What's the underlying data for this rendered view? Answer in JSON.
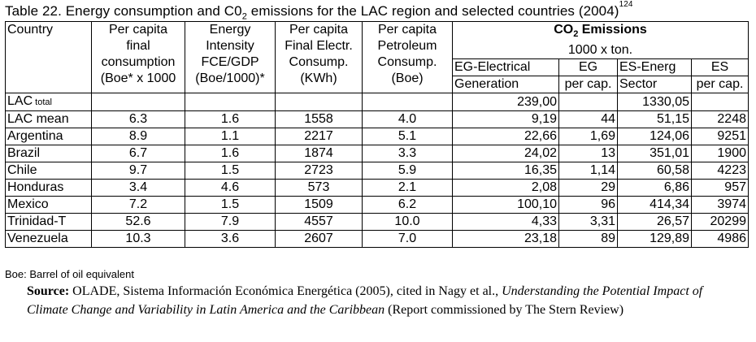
{
  "title": {
    "prefix": "Table 22. Energy consumption and C0",
    "sub": "2",
    "suffix": " emissions for the LAC region and selected countries (2004)",
    "footnote": "124"
  },
  "headers": {
    "country": "Country",
    "per_capita_final": [
      "Per capita",
      "final",
      "consumption",
      "(Boe* x 1000"
    ],
    "energy_intensity": [
      "Energy",
      "Intensity",
      "FCE/GDP",
      "(Boe/1000)*"
    ],
    "per_capita_elec": [
      "Per capita",
      "Final Electr.",
      "Consump.",
      "(KWh)"
    ],
    "per_capita_petro": [
      "Per capita",
      "Petroleum",
      "Consump.",
      "(Boe)"
    ],
    "co2_title": "CO",
    "co2_sub": "2",
    "co2_title_suffix": " Emissions",
    "co2_units": "1000 x ton.",
    "eg": [
      "EG-Electrical",
      "Generation"
    ],
    "eg_cap": [
      "EG",
      "per cap."
    ],
    "es": [
      "ES-Energ",
      "Sector"
    ],
    "es_cap": [
      "ES",
      "per cap."
    ]
  },
  "lac_total": {
    "name": "LAC",
    "name_suffix": " total",
    "eg": "239,00",
    "es": "1330,05"
  },
  "rows": [
    {
      "country": "LAC mean",
      "final": "6.3",
      "intensity": "1.6",
      "elec": "1558",
      "petro": "4.0",
      "eg": "9,19",
      "eg_cap": "44",
      "es": "51,15",
      "es_cap": "2248"
    },
    {
      "country": "Argentina",
      "final": "8.9",
      "intensity": "1.1",
      "elec": "2217",
      "petro": "5.1",
      "eg": "22,66",
      "eg_cap": "1,69",
      "es": "124,06",
      "es_cap": "9251"
    },
    {
      "country": "Brazil",
      "final": "6.7",
      "intensity": "1.6",
      "elec": "1874",
      "petro": "3.3",
      "eg": "24,02",
      "eg_cap": "13",
      "es": "351,01",
      "es_cap": "1900"
    },
    {
      "country": "Chile",
      "final": "9.7",
      "intensity": "1.5",
      "elec": "2723",
      "petro": "5.9",
      "eg": "16,35",
      "eg_cap": "1,14",
      "es": "60,58",
      "es_cap": "4223"
    },
    {
      "country": "Honduras",
      "final": "3.4",
      "intensity": "4.6",
      "elec": "573",
      "petro": "2.1",
      "eg": "2,08",
      "eg_cap": "29",
      "es": "6,86",
      "es_cap": "957"
    },
    {
      "country": "Mexico",
      "final": "7.2",
      "intensity": "1.5",
      "elec": "1509",
      "petro": "6.2",
      "eg": "100,10",
      "eg_cap": "96",
      "es": "414,34",
      "es_cap": "3974"
    },
    {
      "country": "Trinidad-T",
      "final": "52.6",
      "intensity": "7.9",
      "elec": "4557",
      "petro": "10.0",
      "eg": "4,33",
      "eg_cap": "3,31",
      "es": "26,57",
      "es_cap": "20299"
    },
    {
      "country": "Venezuela",
      "final": "10.3",
      "intensity": "3.6",
      "elec": "2607",
      "petro": "7.0",
      "eg": "23,18",
      "eg_cap": "89",
      "es": "129,89",
      "es_cap": "4986"
    }
  ],
  "note": "Boe: Barrel of oil equivalent",
  "source": {
    "label": "Source:",
    "text1": " OLADE, Sistema Información Económica Energética (2005), cited in Nagy et al., ",
    "italic": "Understanding the Potential Impact of Climate Change and Variability in Latin America and the Caribbean",
    "text2": " (Report commissioned by The Stern Review)"
  }
}
